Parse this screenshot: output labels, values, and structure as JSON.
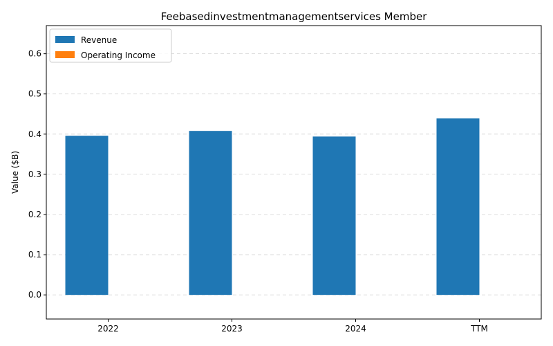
{
  "chart_data": {
    "type": "bar",
    "title": "Feebasedinvestmentmanagementservices Member",
    "xlabel": "",
    "ylabel": "Value ($B)",
    "categories": [
      "2022",
      "2023",
      "2024",
      "TTM"
    ],
    "series": [
      {
        "name": "Revenue",
        "color": "#1f77b4",
        "values": [
          0.396,
          0.408,
          0.394,
          0.439
        ]
      },
      {
        "name": "Operating Income",
        "color": "#ff7f0e",
        "values": [
          0,
          0,
          0,
          0
        ]
      }
    ],
    "ylim": [
      -0.06,
      0.67
    ],
    "yticks": [
      0.0,
      0.1,
      0.2,
      0.3,
      0.4,
      0.5,
      0.6
    ],
    "ytick_labels": [
      "0.0",
      "0.1",
      "0.2",
      "0.3",
      "0.4",
      "0.5",
      "0.6"
    ],
    "grid": true,
    "legend_position": "top-left"
  }
}
